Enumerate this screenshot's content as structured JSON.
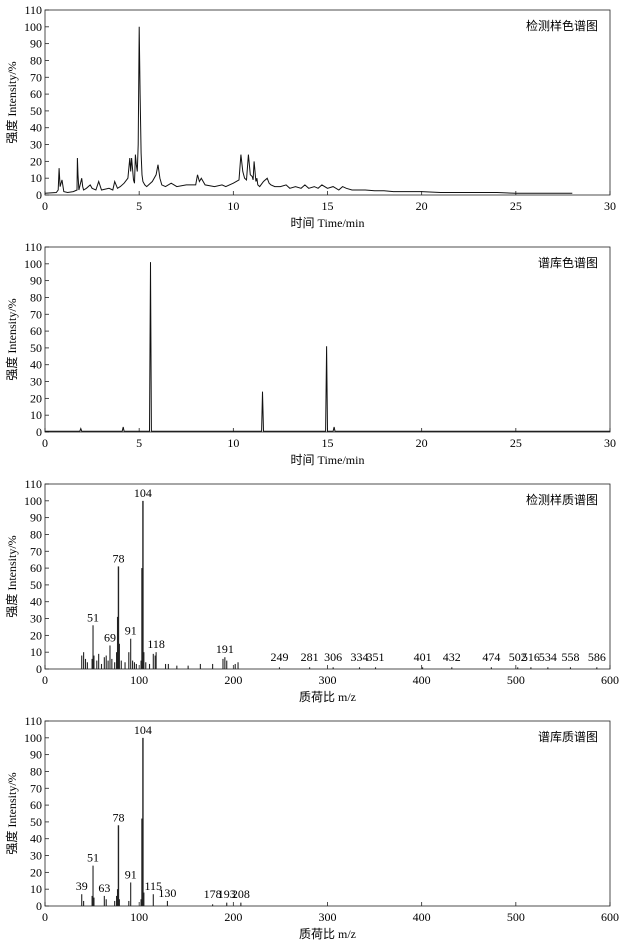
{
  "chart_data": [
    {
      "type": "line",
      "title": "检测样色谱图",
      "xlabel": "时间 Time/min",
      "ylabel": "强度 Intensity/%",
      "xlim": [
        0,
        30
      ],
      "ylim": [
        0,
        110
      ],
      "xticks": [
        "0",
        "5",
        "10",
        "15",
        "20",
        "25",
        "30"
      ],
      "yticks": [
        "0",
        "10",
        "20",
        "30",
        "40",
        "50",
        "60",
        "70",
        "80",
        "90",
        "100",
        "110"
      ],
      "series": [
        {
          "x": [
            0,
            0.6,
            0.7,
            0.75,
            0.8,
            0.9,
            1.0,
            1.2,
            1.5,
            1.7,
            1.72,
            1.75,
            1.8,
            1.95,
            2.0,
            2.05,
            2.2,
            2.4,
            2.5,
            2.7,
            2.85,
            3.0,
            3.4,
            3.6,
            3.7,
            3.85,
            4.0,
            4.2,
            4.4,
            4.5,
            4.55,
            4.6,
            4.7,
            4.75,
            4.8,
            4.85,
            4.9,
            4.95,
            5.0,
            5.05,
            5.1,
            5.15,
            5.2,
            5.3,
            5.4,
            5.5,
            5.7,
            5.9,
            6.0,
            6.1,
            6.2,
            6.4,
            6.7,
            7.0,
            7.5,
            8.0,
            8.1,
            8.2,
            8.3,
            8.5,
            9.0,
            9.4,
            9.6,
            10.0,
            10.3,
            10.4,
            10.5,
            10.6,
            10.7,
            10.8,
            10.9,
            11.0,
            11.05,
            11.1,
            11.2,
            11.25,
            11.3,
            11.4,
            11.6,
            11.8,
            11.9,
            12.0,
            12.2,
            12.5,
            12.8,
            13.0,
            13.3,
            13.6,
            13.8,
            14.0,
            14.3,
            14.5,
            14.7,
            15.0,
            15.3,
            15.6,
            15.8,
            16.0,
            16.3,
            16.5,
            17.0,
            17.5,
            18.0,
            18.5,
            19.0,
            19.5,
            20.0,
            21.0,
            22.0,
            23.0,
            24.0,
            25.0,
            26.0,
            27.0,
            28.0
          ],
          "y": [
            1,
            1.5,
            3,
            16,
            5,
            9,
            2,
            1.5,
            2,
            3,
            22,
            12,
            3,
            10,
            5,
            3,
            4,
            6,
            4,
            3,
            8,
            3,
            4,
            3,
            8,
            4,
            5,
            7,
            10,
            22,
            14,
            22,
            9,
            7,
            24,
            18,
            14,
            30,
            100,
            60,
            25,
            12,
            8,
            6,
            5,
            6,
            8,
            12,
            18,
            10,
            6,
            5,
            7,
            5,
            6,
            6,
            12,
            8,
            10,
            6,
            5,
            6,
            5,
            7,
            9,
            24,
            14,
            10,
            9,
            24,
            12,
            11,
            9,
            20,
            8,
            10,
            6,
            5,
            8,
            10,
            7,
            6,
            5,
            5,
            6,
            4,
            5,
            4,
            6,
            4,
            5,
            4,
            6,
            4,
            5,
            3,
            5,
            4,
            3,
            3,
            3,
            2.5,
            2.5,
            2,
            2,
            2,
            2,
            1.5,
            1.5,
            1.5,
            1.5,
            1,
            1,
            1,
            1
          ]
        }
      ]
    },
    {
      "type": "line",
      "title": "谱库色谱图",
      "xlabel": "时间 Time/min",
      "ylabel": "强度 Intensity/%",
      "xlim": [
        0,
        30
      ],
      "ylim": [
        0,
        110
      ],
      "xticks": [
        "0",
        "5",
        "10",
        "15",
        "20",
        "25",
        "30"
      ],
      "yticks": [
        "0",
        "10",
        "20",
        "30",
        "40",
        "50",
        "60",
        "70",
        "80",
        "90",
        "100",
        "110"
      ],
      "series": [
        {
          "x": [
            0,
            1.85,
            1.9,
            1.95,
            4.1,
            4.15,
            4.2,
            5.55,
            5.6,
            5.65,
            11.5,
            11.55,
            11.6,
            14.9,
            14.95,
            15.0,
            15.3,
            15.35,
            15.4,
            30
          ],
          "y": [
            0.5,
            0.5,
            2,
            0.5,
            0.5,
            3,
            0.5,
            0.5,
            101,
            0.5,
            0.5,
            24,
            0.5,
            0.5,
            51,
            0.5,
            0.5,
            3,
            0.5,
            0.5
          ]
        }
      ]
    },
    {
      "type": "bar",
      "title": "检测样质谱图",
      "xlabel": "质荷比 m/z",
      "ylabel": "强度 Intensity/%",
      "xlim": [
        0,
        600
      ],
      "ylim": [
        0,
        110
      ],
      "xticks": [
        "0",
        "100",
        "200",
        "300",
        "400",
        "500",
        "600"
      ],
      "yticks": [
        "0",
        "10",
        "20",
        "30",
        "40",
        "50",
        "60",
        "70",
        "80",
        "90",
        "100",
        "110"
      ],
      "x": [
        39,
        41,
        43,
        45,
        50,
        51,
        52,
        55,
        57,
        60,
        63,
        65,
        67,
        69,
        71,
        74,
        76,
        77,
        78,
        79,
        81,
        85,
        89,
        91,
        93,
        95,
        97,
        102,
        103,
        104,
        105,
        107,
        111,
        115,
        117,
        118,
        128,
        131,
        140,
        152,
        165,
        178,
        189,
        191,
        193,
        202,
        205,
        249,
        281,
        306,
        334,
        351,
        401,
        432,
        474,
        502,
        516,
        534,
        558,
        586
      ],
      "values": [
        8,
        10,
        6,
        4,
        6,
        26,
        8,
        5,
        9,
        3,
        7,
        8,
        5,
        14,
        6,
        4,
        10,
        31,
        61,
        15,
        5,
        4,
        10,
        18,
        5,
        4,
        3,
        5,
        60,
        100,
        10,
        4,
        3,
        9,
        8,
        10,
        3,
        3,
        2,
        2,
        3,
        3,
        6,
        7,
        5,
        3,
        4,
        1,
        1,
        1,
        1,
        1,
        1,
        1,
        1,
        1,
        1,
        1,
        1,
        1
      ],
      "peak_labels": [
        "104",
        "78",
        "51",
        "69",
        "91",
        "118",
        "191",
        "249",
        "281",
        "306",
        "334",
        "351",
        "401",
        "432",
        "474",
        "502",
        "516",
        "534",
        "558",
        "586"
      ]
    },
    {
      "type": "bar",
      "title": "谱库质谱图",
      "xlabel": "质荷比 m/z",
      "ylabel": "强度 Intensity/%",
      "xlim": [
        0,
        600
      ],
      "ylim": [
        0,
        110
      ],
      "xticks": [
        "0",
        "100",
        "200",
        "300",
        "400",
        "500",
        "600"
      ],
      "yticks": [
        "0",
        "10",
        "20",
        "30",
        "40",
        "50",
        "60",
        "70",
        "80",
        "90",
        "100",
        "110"
      ],
      "x": [
        39,
        41,
        50,
        51,
        52,
        63,
        65,
        74,
        76,
        77,
        78,
        79,
        89,
        91,
        102,
        103,
        104,
        105,
        115,
        130,
        178,
        193,
        208
      ],
      "values": [
        7,
        3,
        6,
        24,
        5,
        6,
        4,
        3,
        6,
        10,
        48,
        4,
        3,
        14,
        4,
        52,
        100,
        8,
        7,
        3,
        1,
        2,
        2
      ],
      "peak_labels": [
        "104",
        "78",
        "51",
        "39",
        "63",
        "91",
        "115",
        "130",
        "193",
        "178",
        "208"
      ]
    }
  ]
}
